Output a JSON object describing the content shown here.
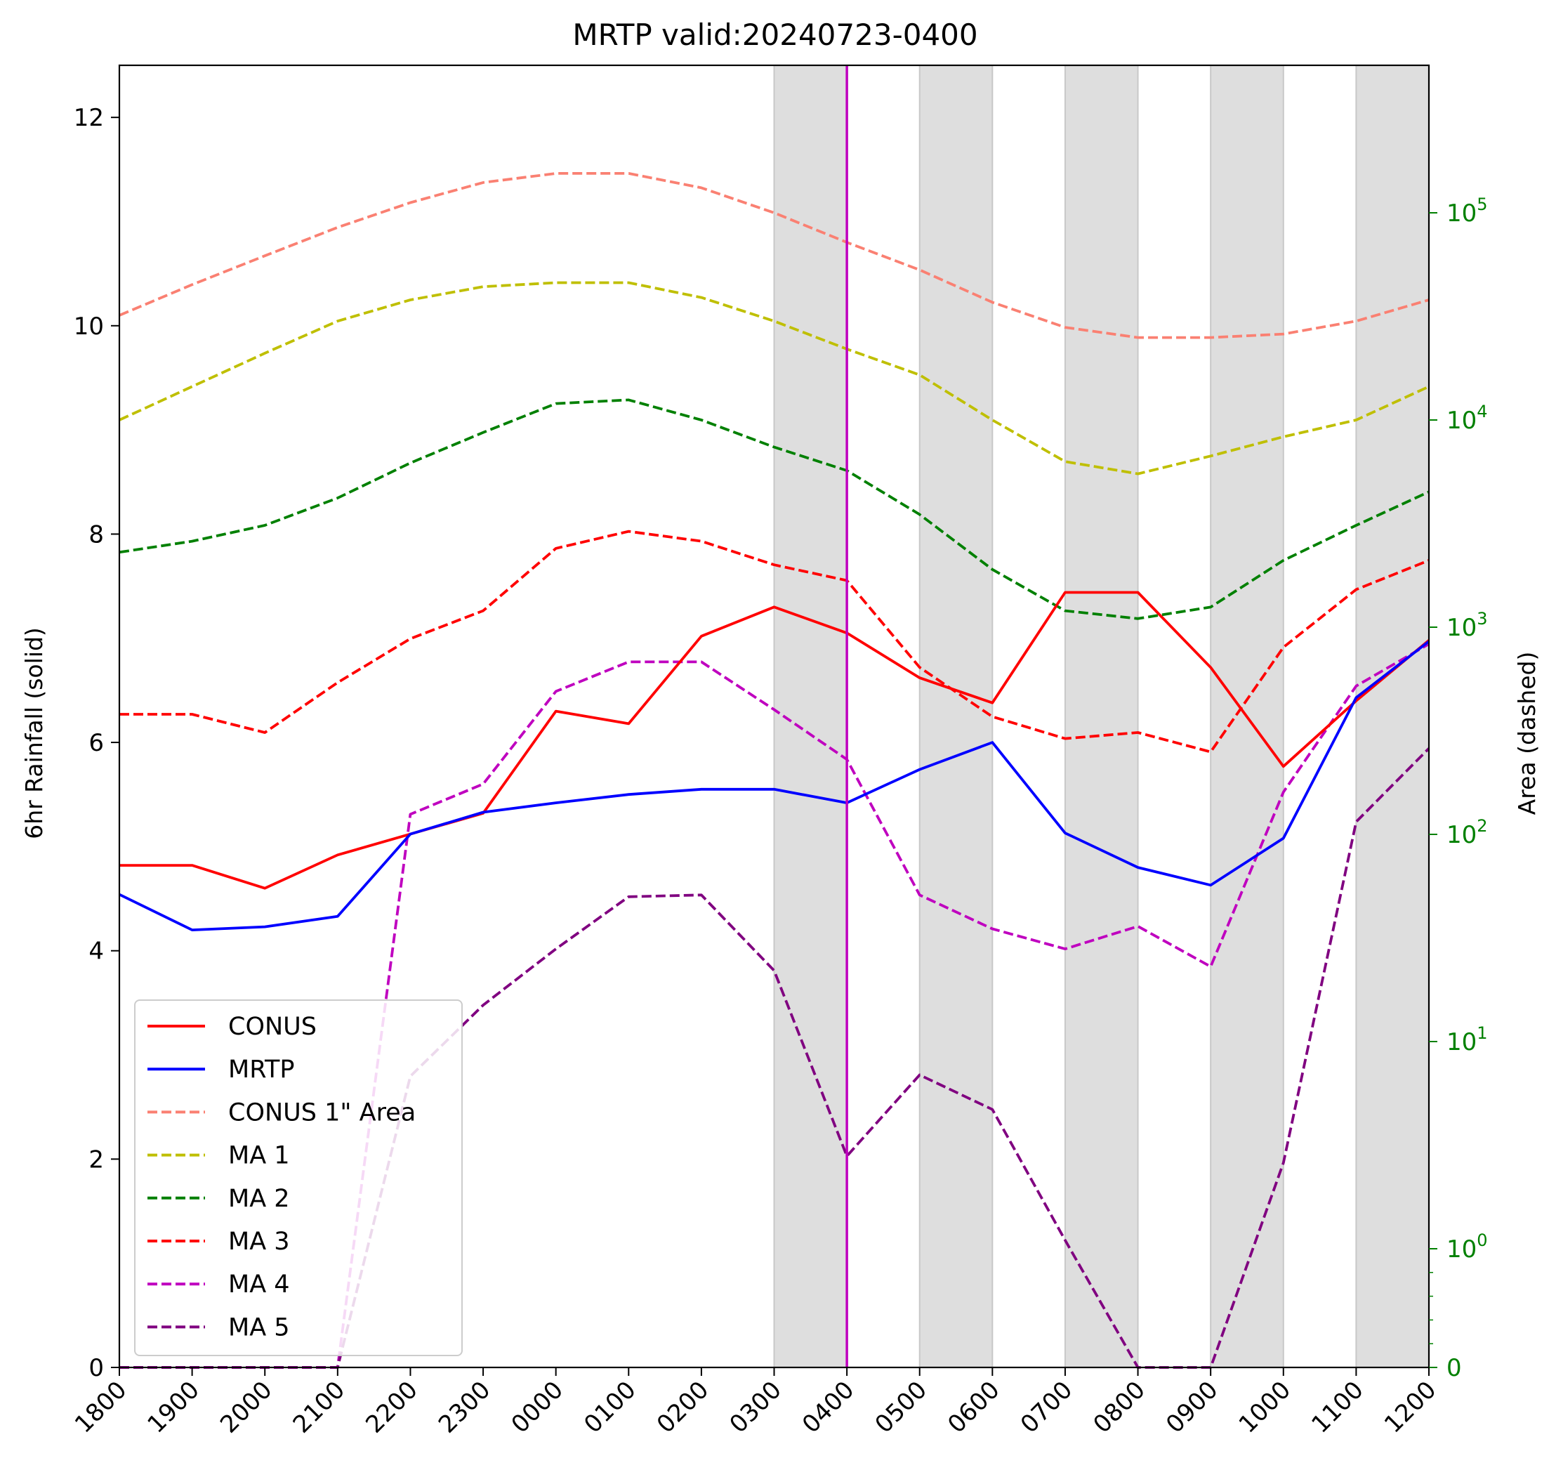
{
  "chart_data": {
    "type": "line",
    "title": "MRTP valid:20240723-0400",
    "xlabel": "",
    "ylabel": "6hr Rainfall (solid)",
    "y2label": "Area (dashed)",
    "ylim": [
      0,
      12.5
    ],
    "yticks": [
      0,
      2,
      4,
      6,
      8,
      10,
      12
    ],
    "y2_scale": "symlog",
    "y2_ticks": [
      {
        "value": 0,
        "base": "0",
        "exp": ""
      },
      {
        "value": 1,
        "base": "10",
        "exp": "0"
      },
      {
        "value": 10,
        "base": "10",
        "exp": "1"
      },
      {
        "value": 100,
        "base": "10",
        "exp": "2"
      },
      {
        "value": 1000,
        "base": "10",
        "exp": "3"
      },
      {
        "value": 10000,
        "base": "10",
        "exp": "4"
      },
      {
        "value": 100000,
        "base": "10",
        "exp": "5"
      }
    ],
    "x": [
      "1800",
      "1900",
      "2000",
      "2100",
      "2200",
      "2300",
      "0000",
      "0100",
      "0200",
      "0300",
      "0400",
      "0500",
      "0600",
      "0700",
      "0800",
      "0900",
      "1000",
      "1100",
      "1200"
    ],
    "valid_time": "0400",
    "shaded_intervals": [
      [
        "0300",
        "0400"
      ],
      [
        "0500",
        "0600"
      ],
      [
        "0700",
        "0800"
      ],
      [
        "0900",
        "1000"
      ],
      [
        "1100",
        "1200"
      ]
    ],
    "grid": false,
    "legend_position": "lower-left",
    "colors": {
      "axis_right": "#008000",
      "valid_line": "#bf00bf",
      "shade": "#dedede"
    },
    "series": [
      {
        "name": "CONUS",
        "axis": "left",
        "style": "solid",
        "color": "#ff0000",
        "values": [
          4.82,
          4.82,
          4.6,
          4.92,
          5.12,
          5.32,
          6.3,
          6.18,
          7.02,
          7.3,
          7.05,
          6.62,
          6.38,
          7.44,
          7.44,
          6.72,
          5.77,
          6.4,
          6.98
        ]
      },
      {
        "name": "MRTP",
        "axis": "left",
        "style": "solid",
        "color": "#0000ff",
        "values": [
          4.54,
          4.2,
          4.23,
          4.33,
          5.12,
          5.33,
          5.42,
          5.5,
          5.55,
          5.55,
          5.42,
          5.74,
          6.0,
          5.13,
          4.8,
          4.63,
          5.08,
          6.43,
          6.97
        ]
      },
      {
        "name": "CONUS 1\" Area",
        "axis": "right",
        "style": "dashed",
        "color": "#fa8072",
        "values": [
          32000,
          45000,
          62000,
          85000,
          112000,
          140000,
          155000,
          155000,
          132000,
          100000,
          72000,
          53000,
          37000,
          28000,
          25000,
          25000,
          26000,
          30000,
          38000
        ]
      },
      {
        "name": "MA 1",
        "axis": "right",
        "style": "dashed",
        "color": "#bfbf00",
        "values": [
          10000,
          14500,
          21000,
          30000,
          38000,
          44000,
          46000,
          46000,
          39000,
          30000,
          22000,
          16500,
          10000,
          6300,
          5500,
          6700,
          8300,
          10000,
          14500
        ]
      },
      {
        "name": "MA 2",
        "axis": "right",
        "style": "dashed",
        "color": "#008000",
        "values": [
          2300,
          2600,
          3100,
          4200,
          6200,
          8700,
          12000,
          12500,
          10000,
          7400,
          5700,
          3500,
          1900,
          1200,
          1100,
          1250,
          2100,
          3100,
          4500
        ]
      },
      {
        "name": "MA 3",
        "axis": "right",
        "style": "dashed",
        "color": "#ff0000",
        "values": [
          380,
          380,
          310,
          540,
          880,
          1200,
          2400,
          2900,
          2600,
          2000,
          1680,
          640,
          370,
          290,
          310,
          250,
          800,
          1520,
          2100
        ]
      },
      {
        "name": "MA 4",
        "axis": "right",
        "style": "dashed",
        "color": "#bf00bf",
        "values": [
          0,
          0,
          0,
          0,
          125,
          175,
          490,
          680,
          680,
          400,
          230,
          51,
          35,
          28,
          36,
          23,
          160,
          520,
          830
        ]
      },
      {
        "name": "MA 5",
        "axis": "right",
        "style": "dashed",
        "color": "#800080",
        "values": [
          0,
          0,
          0,
          0,
          6.8,
          15,
          28,
          50,
          51,
          22,
          2.8,
          6.9,
          4.7,
          1.1,
          0,
          0,
          2.6,
          115,
          260
        ]
      }
    ]
  }
}
